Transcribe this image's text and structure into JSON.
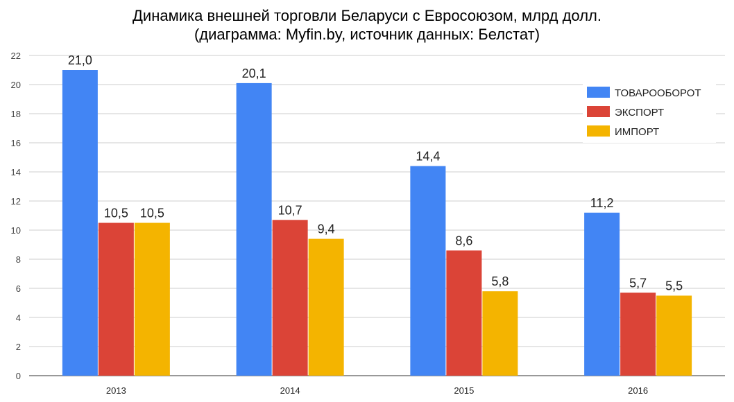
{
  "chart_data": {
    "type": "bar",
    "title_line1": "Динамика внешней торговли Беларуси с Евросоюзом, млрд долл.",
    "title_line2": "(диаграмма: Myfin.by, источник данных: Белстат)",
    "categories": [
      "2013",
      "2014",
      "2015",
      "2016"
    ],
    "series": [
      {
        "name": "ТОВАРООБОРОТ",
        "color": "#4285f4",
        "values": [
          21.0,
          20.1,
          14.4,
          11.2
        ],
        "labels": [
          "21,0",
          "20,1",
          "14,4",
          "11,2"
        ]
      },
      {
        "name": "ЭКСПОРТ",
        "color": "#db4437",
        "values": [
          10.5,
          10.7,
          8.6,
          5.7
        ],
        "labels": [
          "10,5",
          "10,7",
          "8,6",
          "5,7"
        ]
      },
      {
        "name": "ИМПОРТ",
        "color": "#f4b400",
        "values": [
          10.5,
          9.4,
          5.8,
          5.5
        ],
        "labels": [
          "10,5",
          "9,4",
          "5,8",
          "5,5"
        ]
      }
    ],
    "ylim": [
      0,
      22
    ],
    "yticks": [
      "0",
      "2",
      "4",
      "6",
      "8",
      "10",
      "12",
      "14",
      "16",
      "18",
      "20",
      "22"
    ],
    "grid": true,
    "legend": "right"
  }
}
